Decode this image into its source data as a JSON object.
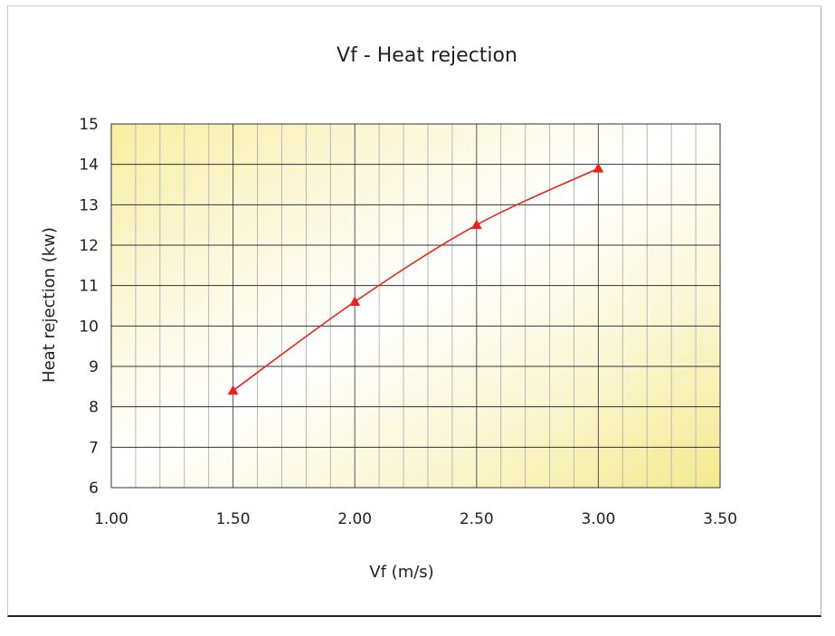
{
  "chart_data": {
    "type": "line",
    "title": "Vf - Heat rejection",
    "xlabel": "Vf (m/s)",
    "ylabel": "Heat rejection (kw)",
    "xlim": [
      1.0,
      3.5
    ],
    "ylim": [
      6,
      15
    ],
    "xticks": [
      "1.00",
      "1.50",
      "2.00",
      "2.50",
      "3.00",
      "3.50"
    ],
    "xtick_values": [
      1.0,
      1.5,
      2.0,
      2.5,
      3.0,
      3.5
    ],
    "yticks": [
      "6",
      "7",
      "8",
      "9",
      "10",
      "11",
      "12",
      "13",
      "14",
      "15"
    ],
    "ytick_values": [
      6,
      7,
      8,
      9,
      10,
      11,
      12,
      13,
      14,
      15
    ],
    "minor_x_step": 0.1,
    "grid": true,
    "marker": "triangle",
    "line_color": "#e8231f",
    "series": [
      {
        "x": [
          1.5,
          2.0,
          2.5,
          3.0
        ],
        "values": [
          8.4,
          10.6,
          12.5,
          13.9
        ]
      }
    ]
  }
}
